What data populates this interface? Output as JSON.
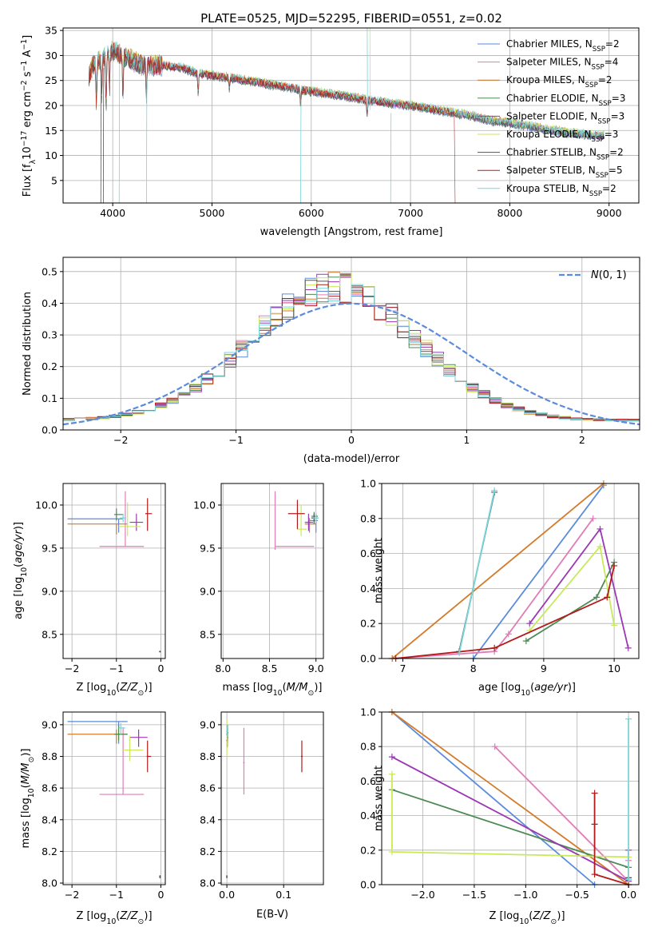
{
  "colors": [
    "#5b8bdc",
    "#e07cb8",
    "#d37b2a",
    "#4e8a56",
    "#9a38b3",
    "#c8ea5a",
    "#555555",
    "#b21b1b",
    "#77d7da"
  ],
  "chart_data": [
    {
      "id": "spectrum",
      "type": "line",
      "title": "PLATE=0525, MJD=52295, FIBERID=0551, z=0.02",
      "xlabel": "wavelength [Angstrom, rest frame]",
      "ylabel": "Flux [f_λ 10^-17 erg cm^-2 s^-1 A^-1]",
      "xlim": [
        3500,
        9300
      ],
      "ylim": [
        0.5,
        35.5
      ],
      "xticks": [
        4000,
        5000,
        6000,
        7000,
        8000,
        9000
      ],
      "yticks": [
        5,
        10,
        15,
        20,
        25,
        30,
        35
      ],
      "continuum": {
        "x": [
          3760,
          3800,
          3900,
          4000,
          4100,
          4200,
          4300,
          4500,
          4700,
          4850,
          5000,
          5200,
          5500,
          5800,
          6000,
          6300,
          6600,
          7000,
          7300,
          7600,
          7800,
          8000,
          8300,
          8600,
          8900
        ],
        "y": [
          26,
          28,
          29.5,
          31,
          30,
          29,
          28,
          28,
          27.5,
          26.5,
          26,
          25.5,
          24.5,
          23.5,
          22.8,
          22,
          21,
          20,
          19,
          18,
          17,
          16.5,
          15.5,
          14.5,
          14
        ]
      },
      "series": [
        {
          "name": "Chabrier MILES, N_SSP=2"
        },
        {
          "name": "Salpeter MILES, N_SSP=4"
        },
        {
          "name": "Kroupa MILES, N_SSP=2"
        },
        {
          "name": "Chabrier ELODIE, N_SSP=3"
        },
        {
          "name": "Salpeter ELODIE, N_SSP=3"
        },
        {
          "name": "Kroupa ELODIE, N_SSP=3"
        },
        {
          "name": "Chabrier STELIB, N_SSP=2"
        },
        {
          "name": "Salpeter STELIB, N_SSP=5"
        },
        {
          "name": "Kroupa STELIB, N_SSP=2"
        }
      ],
      "legend": "upper right"
    },
    {
      "id": "residuals",
      "type": "histogram",
      "xlabel": "(data-model)/error",
      "ylabel": "Normed distribution",
      "xlim": [
        -2.5,
        2.5
      ],
      "ylim": [
        0,
        0.545
      ],
      "xticks": [
        -2,
        -1,
        0,
        1,
        2
      ],
      "yticks": [
        0.0,
        0.1,
        0.2,
        0.3,
        0.4,
        0.5
      ],
      "gaussian_label": "N(0,1)",
      "legend": "upper right",
      "bin_width": 0.1
    },
    {
      "id": "age-vs-Z",
      "type": "scatter",
      "xlabel": "Z [log10(Z/Z⊙)]",
      "ylabel": "age  [log10(age/yr)]",
      "xlim": [
        -2.2,
        0.1
      ],
      "ylim": [
        8.22,
        10.25
      ],
      "xticks": [
        -2,
        -1,
        0
      ],
      "yticks": [
        8.5,
        9.0,
        9.5,
        10.0
      ],
      "points": [
        {
          "x": -0.95,
          "y": 9.84,
          "xlo": -2.1,
          "xhi": -0.85,
          "ylo": 9.68,
          "yhi": 9.84
        },
        {
          "x": -0.8,
          "y": 9.52,
          "xlo": -1.38,
          "xhi": -0.38,
          "ylo": 9.52,
          "yhi": 10.16
        },
        {
          "x": -1.0,
          "y": 9.78,
          "xlo": -2.1,
          "xhi": -0.75,
          "ylo": 9.66,
          "yhi": 9.78
        },
        {
          "x": -1.0,
          "y": 9.89,
          "xlo": -1.05,
          "xhi": -0.85,
          "ylo": 9.82,
          "yhi": 9.96
        },
        {
          "x": -0.55,
          "y": 9.8,
          "xlo": -0.7,
          "xhi": -0.4,
          "ylo": 9.7,
          "yhi": 9.9
        },
        {
          "x": -0.75,
          "y": 9.75,
          "xlo": -0.95,
          "xhi": -0.45,
          "ylo": 9.64,
          "yhi": 10.03
        },
        {
          "x": -0.02,
          "y": 8.3,
          "xlo": -0.04,
          "xhi": 0.0,
          "ylo": 8.29,
          "yhi": 8.31
        },
        {
          "x": -0.3,
          "y": 9.9,
          "xlo": -0.35,
          "xhi": -0.2,
          "ylo": 9.7,
          "yhi": 10.08
        },
        {
          "x": -0.85,
          "y": 9.85,
          "xlo": -0.92,
          "xhi": -0.78,
          "ylo": 9.8,
          "yhi": 9.9
        }
      ]
    },
    {
      "id": "age-vs-mass",
      "type": "scatter",
      "xlabel": "mass [log10(M/M⊙)]",
      "ylabel": "",
      "xlim": [
        7.98,
        9.08
      ],
      "ylim": [
        8.22,
        10.25
      ],
      "xticks": [
        8.0,
        8.5,
        9.0
      ],
      "yticks": [
        8.5,
        9.0,
        9.5,
        10.0
      ],
      "points": [
        {
          "x": 9.0,
          "y": 9.82,
          "xlo": 8.93,
          "xhi": 9.02,
          "ylo": 9.68,
          "yhi": 9.9
        },
        {
          "x": 8.56,
          "y": 9.52,
          "xlo": 8.56,
          "xhi": 8.98,
          "ylo": 9.48,
          "yhi": 10.16
        },
        {
          "x": 8.93,
          "y": 9.78,
          "xlo": 8.88,
          "xhi": 9.0,
          "ylo": 9.68,
          "yhi": 9.85
        },
        {
          "x": 8.98,
          "y": 9.87,
          "xlo": 8.95,
          "xhi": 9.02,
          "ylo": 9.78,
          "yhi": 9.92
        },
        {
          "x": 8.92,
          "y": 9.8,
          "xlo": 8.88,
          "xhi": 8.97,
          "ylo": 9.7,
          "yhi": 9.9
        },
        {
          "x": 8.84,
          "y": 9.72,
          "xlo": 8.8,
          "xhi": 8.9,
          "ylo": 9.64,
          "yhi": 10.0
        },
        {
          "x": 8.98,
          "y": 9.85,
          "xlo": 8.95,
          "xhi": 9.02,
          "ylo": 9.8,
          "yhi": 9.9
        },
        {
          "x": 8.8,
          "y": 9.9,
          "xlo": 8.7,
          "xhi": 8.88,
          "ylo": 9.72,
          "yhi": 10.06
        },
        {
          "x": 9.0,
          "y": 9.85,
          "xlo": 8.97,
          "xhi": 9.03,
          "ylo": 9.8,
          "yhi": 9.9
        }
      ]
    },
    {
      "id": "mass-weight-vs-age",
      "type": "line",
      "xlabel": "age  [log10(age/yr)]",
      "ylabel": "mass weight",
      "xlim": [
        6.7,
        10.35
      ],
      "ylim": [
        0,
        1
      ],
      "xticks": [
        7,
        8,
        9,
        10
      ],
      "yticks": [
        0.0,
        0.2,
        0.4,
        0.6,
        0.8,
        1.0
      ],
      "series": [
        {
          "x": [
            8.0,
            9.85
          ],
          "y": [
            0.0,
            0.99
          ]
        },
        {
          "x": [
            6.85,
            8.3,
            8.5,
            9.7
          ],
          "y": [
            0.0,
            0.04,
            0.14,
            0.8
          ]
        },
        {
          "x": [
            6.85,
            9.85
          ],
          "y": [
            0.0,
            1.0
          ]
        },
        {
          "x": [
            8.75,
            9.75,
            10.0
          ],
          "y": [
            0.1,
            0.35,
            0.55
          ]
        },
        {
          "x": [
            8.8,
            9.8,
            10.2
          ],
          "y": [
            0.2,
            0.74,
            0.06
          ]
        },
        {
          "x": [
            8.8,
            9.8,
            10.0
          ],
          "y": [
            0.16,
            0.64,
            0.19
          ]
        },
        {
          "x": [
            7.8,
            8.3
          ],
          "y": [
            0.04,
            0.95
          ]
        },
        {
          "x": [
            6.9,
            8.3,
            9.9,
            10.0
          ],
          "y": [
            0.0,
            0.06,
            0.35,
            0.53
          ]
        },
        {
          "x": [
            7.8,
            8.3
          ],
          "y": [
            0.03,
            0.96
          ]
        }
      ]
    },
    {
      "id": "mass-vs-Z",
      "type": "scatter",
      "xlabel": "Z [log10(Z/Z⊙)]",
      "ylabel": "mass [log10(M/M⊙)]",
      "xlim": [
        -2.2,
        0.1
      ],
      "ylim": [
        7.99,
        9.08
      ],
      "xticks": [
        -2,
        -1,
        0
      ],
      "yticks": [
        8.0,
        8.2,
        8.4,
        8.6,
        8.8,
        9.0
      ],
      "points": [
        {
          "x": -0.95,
          "y": 9.02,
          "xlo": -2.1,
          "xhi": -0.75,
          "ylo": 8.88,
          "yhi": 9.02
        },
        {
          "x": -0.85,
          "y": 8.56,
          "xlo": -1.38,
          "xhi": -0.38,
          "ylo": 8.56,
          "yhi": 8.98
        },
        {
          "x": -1.0,
          "y": 8.94,
          "xlo": -2.1,
          "xhi": -0.75,
          "ylo": 8.88,
          "yhi": 8.97
        },
        {
          "x": -0.95,
          "y": 8.94,
          "xlo": -1.05,
          "xhi": -0.75,
          "ylo": 8.9,
          "yhi": 9.0
        },
        {
          "x": -0.5,
          "y": 8.92,
          "xlo": -0.7,
          "xhi": -0.3,
          "ylo": 8.86,
          "yhi": 8.97
        },
        {
          "x": -0.7,
          "y": 8.84,
          "xlo": -0.85,
          "xhi": -0.4,
          "ylo": 8.77,
          "yhi": 8.93
        },
        {
          "x": -0.02,
          "y": 8.04,
          "xlo": -0.04,
          "xhi": 0.0,
          "ylo": 8.03,
          "yhi": 8.05
        },
        {
          "x": -0.3,
          "y": 8.8,
          "xlo": -0.32,
          "xhi": -0.22,
          "ylo": 8.7,
          "yhi": 8.9
        },
        {
          "x": -0.9,
          "y": 8.98,
          "xlo": -0.95,
          "xhi": -0.8,
          "ylo": 8.94,
          "yhi": 9.01
        }
      ]
    },
    {
      "id": "mass-vs-EBV",
      "type": "scatter",
      "xlabel": "E(B-V)",
      "ylabel": "",
      "xlim": [
        -0.01,
        0.17
      ],
      "ylim": [
        7.99,
        9.08
      ],
      "xticks": [
        0.0,
        0.1
      ],
      "yticks": [
        8.0,
        8.2,
        8.4,
        8.6,
        8.8,
        9.0
      ],
      "points": [
        {
          "x": 0.0,
          "y": 8.94,
          "ylo": 8.88,
          "yhi": 9.0
        },
        {
          "x": 0.03,
          "y": 8.76,
          "ylo": 8.56,
          "yhi": 8.98
        },
        {
          "x": 0.001,
          "y": 8.92,
          "ylo": 8.86,
          "yhi": 8.98
        },
        {
          "x": 0.001,
          "y": 8.95,
          "ylo": 8.9,
          "yhi": 9.0
        },
        {
          "x": 0.0,
          "y": 8.9,
          "ylo": 8.85,
          "yhi": 8.95
        },
        {
          "x": 0.0,
          "y": 8.88,
          "ylo": 8.8,
          "yhi": 9.03
        },
        {
          "x": 0.0,
          "y": 8.04,
          "ylo": 8.03,
          "yhi": 8.05
        },
        {
          "x": 0.132,
          "y": 8.8,
          "ylo": 8.7,
          "yhi": 8.9
        },
        {
          "x": 0.0,
          "y": 8.96,
          "ylo": 8.93,
          "yhi": 9.0
        }
      ]
    },
    {
      "id": "mass-weight-vs-Z",
      "type": "line",
      "xlabel": "Z [log10(Z/Z⊙)]",
      "ylabel": "mass weight",
      "xlim": [
        -2.4,
        0.1
      ],
      "ylim": [
        0,
        1
      ],
      "xticks": [
        -2.0,
        -1.5,
        -1.0,
        -0.5,
        0.0
      ],
      "yticks": [
        0.0,
        0.2,
        0.4,
        0.6,
        0.8,
        1.0
      ],
      "series": [
        {
          "x": [
            -2.3,
            -0.33
          ],
          "y": [
            1.0,
            0.0
          ]
        },
        {
          "x": [
            -1.3,
            0.0,
            0.0,
            0.0
          ],
          "y": [
            0.8,
            0.02,
            0.14,
            0.04
          ]
        },
        {
          "x": [
            -2.3,
            0.0
          ],
          "y": [
            1.0,
            0.0
          ]
        },
        {
          "x": [
            -2.3,
            0.0
          ],
          "y": [
            0.55,
            0.1
          ]
        },
        {
          "x": [
            -2.3,
            0.0,
            0.0
          ],
          "y": [
            0.74,
            0.02,
            0.2
          ]
        },
        {
          "x": [
            -2.3,
            -2.3,
            0.0,
            0.0
          ],
          "y": [
            0.64,
            0.19,
            0.16,
            0.0
          ]
        },
        {
          "x": [
            0.0,
            0.0
          ],
          "y": [
            0.04,
            0.03
          ]
        },
        {
          "x": [
            -0.33,
            -0.33,
            -0.33,
            0.0
          ],
          "y": [
            0.53,
            0.35,
            0.06,
            0.0
          ]
        },
        {
          "x": [
            0.0,
            0.0
          ],
          "y": [
            0.96,
            0.03
          ]
        }
      ]
    }
  ]
}
